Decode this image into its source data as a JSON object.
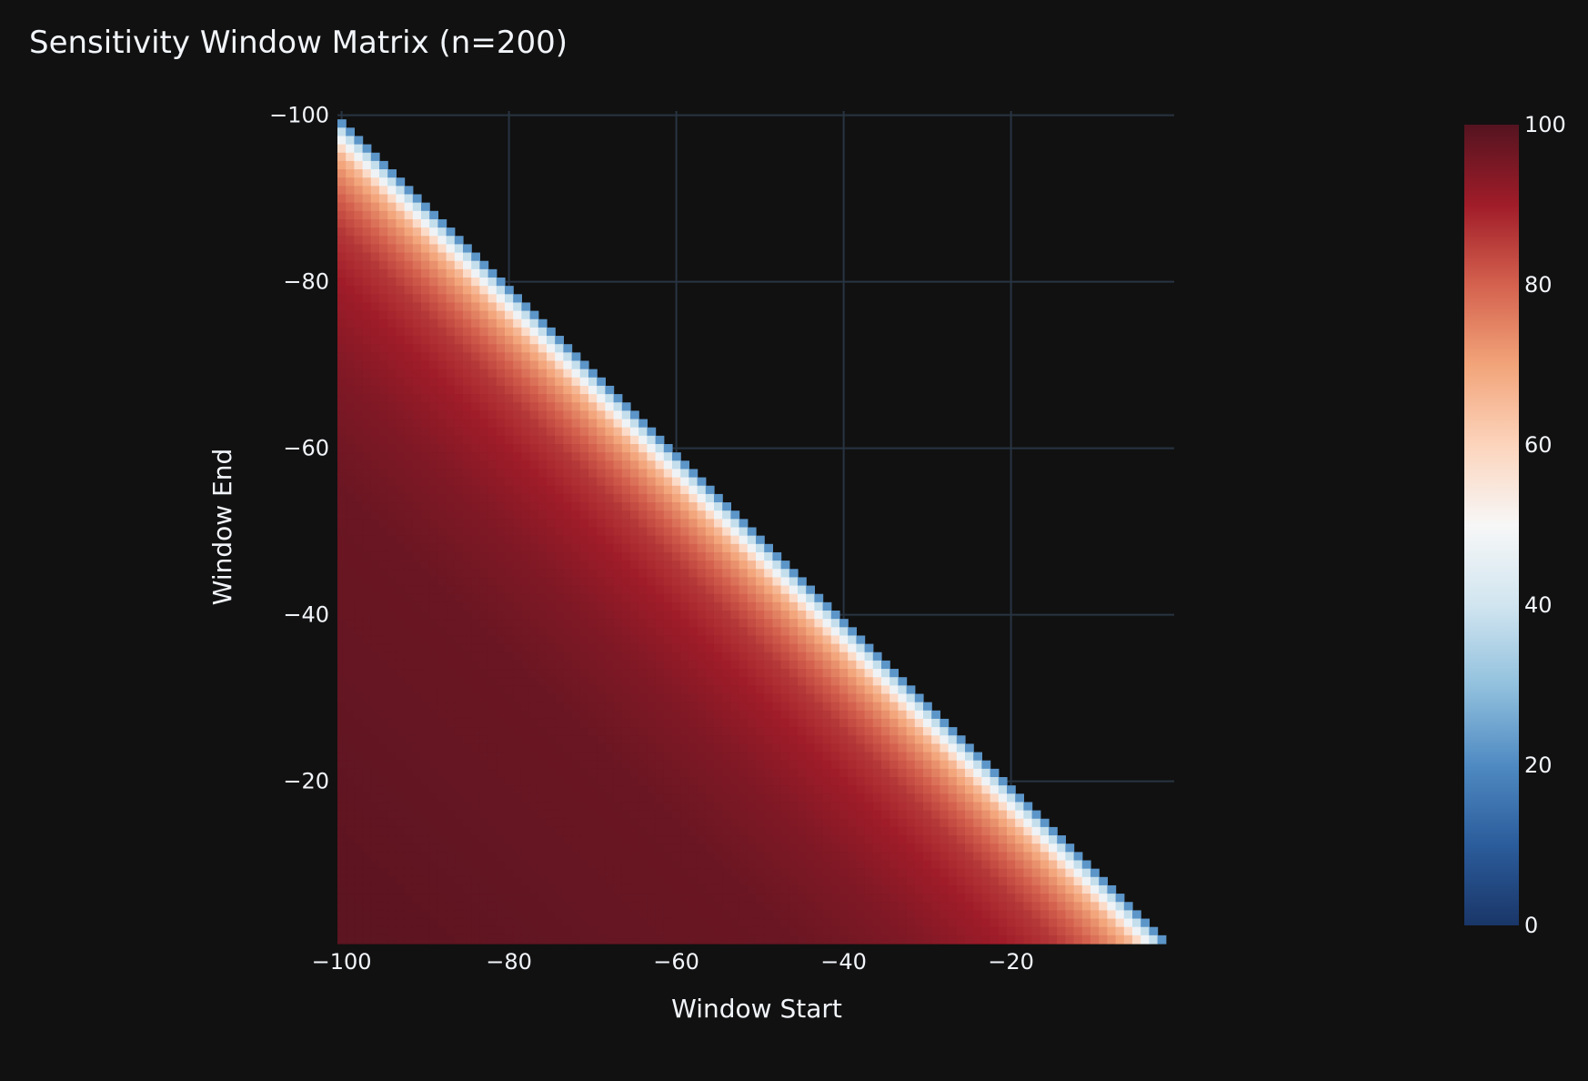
{
  "chart_data": {
    "type": "heatmap",
    "title": "Sensitivity Window Matrix (n=200)",
    "xlabel": "Window Start",
    "ylabel": "Window End",
    "x_range": [
      -100,
      -1
    ],
    "y_range": [
      -100,
      -1
    ],
    "x_ticks": [
      -100,
      -80,
      -60,
      -40,
      -20
    ],
    "y_ticks": [
      -100,
      -80,
      -60,
      -40,
      -20
    ],
    "x_tick_labels": [
      "−100",
      "−80",
      "−60",
      "−40",
      "−20"
    ],
    "y_tick_labels": [
      "−100",
      "−80",
      "−60",
      "−40",
      "−20"
    ],
    "y_axis_reversed": true,
    "grid": true,
    "cell_rule": "value defined only for Window End greater than Window Start; empty above the diagonal",
    "value_profile": {
      "description": "value by window width (end - start); deepest red far from the diagonal",
      "width": [
        1,
        2,
        3,
        4,
        5,
        7,
        10,
        14,
        20,
        30,
        45,
        99
      ],
      "value": [
        22,
        38,
        48,
        58,
        66,
        73,
        80,
        86,
        90,
        94,
        97,
        99
      ]
    },
    "colorscale": {
      "name": "RdBu reversed",
      "min": 0,
      "max": 100,
      "stops": [
        [
          0.0,
          "#1a3668"
        ],
        [
          0.1,
          "#2b5c9b"
        ],
        [
          0.2,
          "#4f8ac2"
        ],
        [
          0.3,
          "#92c1de"
        ],
        [
          0.4,
          "#d1e5f0"
        ],
        [
          0.5,
          "#f7f7f7"
        ],
        [
          0.6,
          "#fcd4bc"
        ],
        [
          0.7,
          "#f2a479"
        ],
        [
          0.8,
          "#d4614e"
        ],
        [
          0.9,
          "#a01c29"
        ],
        [
          1.0,
          "#541420"
        ]
      ],
      "ticks": [
        0,
        20,
        40,
        60,
        80,
        100
      ]
    }
  }
}
